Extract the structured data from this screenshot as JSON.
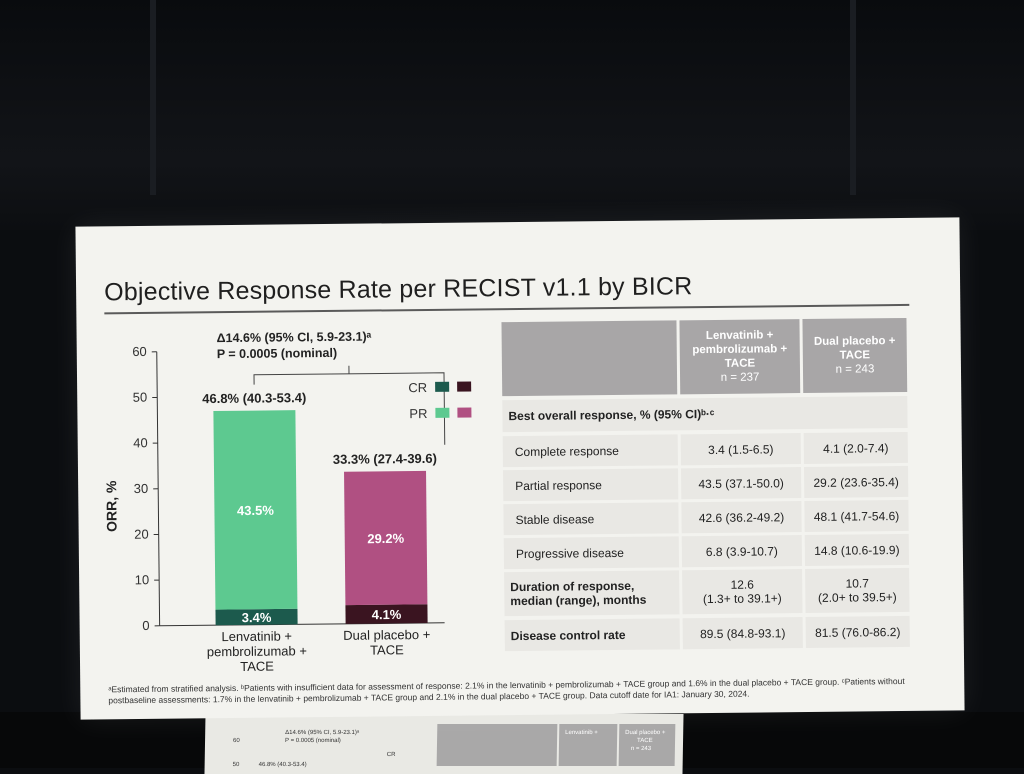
{
  "slide": {
    "title": "Objective Response Rate per RECIST v1.1 by BICR",
    "footnote_line1": "ᵃEstimated from stratified analysis. ᵇPatients with insufficient data for assessment of response: 2.1% in the lenvatinib + pembrolizumab + TACE group and 1.6% in the dual placebo + TACE group. ᶜPatients without",
    "footnote_line2": "postbaseline assessments: 1.7% in the lenvatinib + pembrolizumab + TACE group and 2.1% in the dual placebo + TACE group. Data cutoff date for IA1: January 30, 2024."
  },
  "chart_data": {
    "type": "bar",
    "stacked": true,
    "ylabel": "ORR, %",
    "ylim": [
      0,
      60
    ],
    "yticks": [
      0,
      10,
      20,
      30,
      40,
      50,
      60
    ],
    "categories": [
      [
        "Lenvatinib +",
        "pembrolizumab +",
        "TACE"
      ],
      [
        "Dual placebo +",
        "TACE"
      ]
    ],
    "series": [
      {
        "name": "CR",
        "values": [
          3.4,
          4.1
        ],
        "labels": [
          "3.4%",
          "4.1%"
        ],
        "colors": [
          "#1c5a4d",
          "#3a1420"
        ]
      },
      {
        "name": "PR",
        "values": [
          43.5,
          29.2
        ],
        "labels": [
          "43.5%",
          "29.2%"
        ],
        "colors": [
          "#5dc990",
          "#b05082"
        ]
      }
    ],
    "totals": [
      "46.8% (40.3-53.4)",
      "33.3% (27.4-39.6)"
    ],
    "legend": [
      {
        "name": "CR",
        "swatches": [
          "#1c5a4d",
          "#3a1420"
        ]
      },
      {
        "name": "PR",
        "swatches": [
          "#5dc990",
          "#b05082"
        ]
      }
    ],
    "legend_position": "top-right",
    "annotation_line1": "Δ14.6% (95% CI, 5.9-23.1)ᵃ",
    "annotation_line2": "P = 0.0005 (nominal)"
  },
  "table": {
    "headers": [
      [
        "Lenvatinib +",
        "pembrolizumab +",
        "TACE",
        "n = 237"
      ],
      [
        "Dual placebo +",
        "TACE",
        "n = 243"
      ]
    ],
    "section_label": "Best overall response, % (95% CI)ᵇ·ᶜ",
    "rows": [
      {
        "label": "Complete response",
        "a": "3.4 (1.5-6.5)",
        "b": "4.1 (2.0-7.4)"
      },
      {
        "label": "Partial response",
        "a": "43.5 (37.1-50.0)",
        "b": "29.2 (23.6-35.4)"
      },
      {
        "label": "Stable disease",
        "a": "42.6 (36.2-49.2)",
        "b": "48.1 (41.7-54.6)"
      },
      {
        "label": "Progressive disease",
        "a": "6.8 (3.9-10.7)",
        "b": "14.8 (10.6-19.9)"
      }
    ],
    "dor": {
      "label1": "Duration of response,",
      "label2": "median (range), months",
      "a1": "12.6",
      "a2": "(1.3+ to 39.1+)",
      "b1": "10.7",
      "b2": "(2.0+ to 39.5+)"
    },
    "dcr": {
      "label": "Disease control rate",
      "a": "89.5 (84.8-93.1)",
      "b": "81.5 (76.0-86.2)"
    }
  },
  "monitor": {
    "annotation1": "Δ14.6% (95% CI, 5.9-23.1)ᵃ",
    "annotation2": "P = 0.0005 (nominal)",
    "tick60": "60",
    "tick50": "50",
    "total": "46.8% (40.3-53.4)",
    "cr": "CR",
    "col1": [
      "Lenvatinib +",
      "pembrolizumab +",
      "TACE",
      "n = 237"
    ],
    "col2": [
      "Dual placebo +",
      "TACE",
      "n = 243"
    ]
  }
}
